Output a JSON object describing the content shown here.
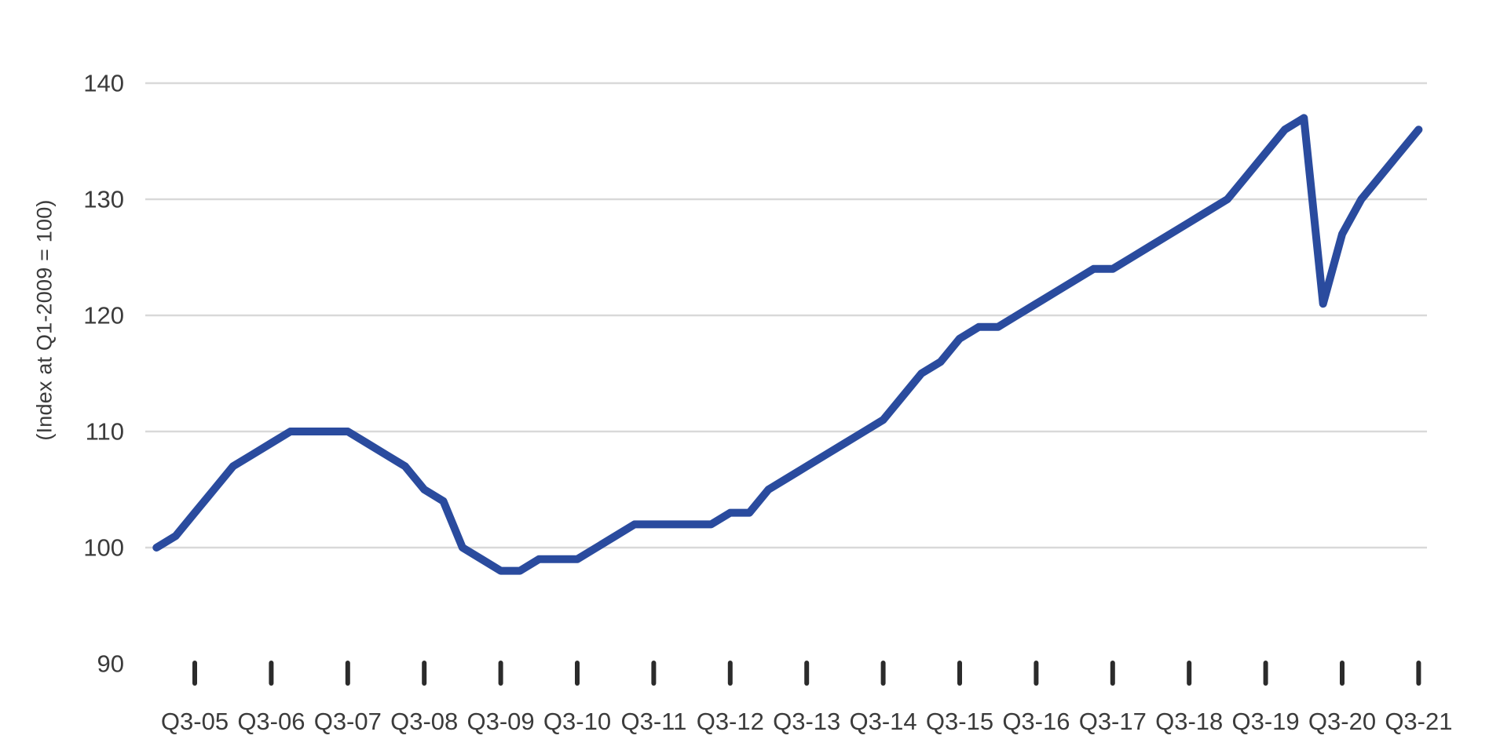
{
  "chart_data": {
    "type": "line",
    "title": "",
    "xlabel": "",
    "ylabel": "(Index at Q1-2009 = 100)",
    "ylim": [
      90,
      140
    ],
    "y_ticks": [
      90,
      100,
      110,
      120,
      130,
      140
    ],
    "gridline_values": [
      100,
      110,
      120,
      130,
      140
    ],
    "grid": "horizontal-only",
    "legend_position": "none",
    "x_tick_labels": [
      "Q3-05",
      "Q3-06",
      "Q3-07",
      "Q3-08",
      "Q3-09",
      "Q3-10",
      "Q3-11",
      "Q3-12",
      "Q3-13",
      "Q3-14",
      "Q3-15",
      "Q3-16",
      "Q3-17",
      "Q3-18",
      "Q3-19",
      "Q3-20",
      "Q3-21"
    ],
    "series": [
      {
        "name": "index",
        "frequency": "quarterly",
        "start_period": "Q1-05",
        "end_period": "Q3-21",
        "quarters": [
          "Q1-05",
          "Q2-05",
          "Q3-05",
          "Q4-05",
          "Q1-06",
          "Q2-06",
          "Q3-06",
          "Q4-06",
          "Q1-07",
          "Q2-07",
          "Q3-07",
          "Q4-07",
          "Q1-08",
          "Q2-08",
          "Q3-08",
          "Q4-08",
          "Q1-09",
          "Q2-09",
          "Q3-09",
          "Q4-09",
          "Q1-10",
          "Q2-10",
          "Q3-10",
          "Q4-10",
          "Q1-11",
          "Q2-11",
          "Q3-11",
          "Q4-11",
          "Q1-12",
          "Q2-12",
          "Q3-12",
          "Q4-12",
          "Q1-13",
          "Q2-13",
          "Q3-13",
          "Q4-13",
          "Q1-14",
          "Q2-14",
          "Q3-14",
          "Q4-14",
          "Q1-15",
          "Q2-15",
          "Q3-15",
          "Q4-15",
          "Q1-16",
          "Q2-16",
          "Q3-16",
          "Q4-16",
          "Q1-17",
          "Q2-17",
          "Q3-17",
          "Q4-17",
          "Q1-18",
          "Q2-18",
          "Q3-18",
          "Q4-18",
          "Q1-19",
          "Q2-19",
          "Q3-19",
          "Q4-19",
          "Q1-20",
          "Q2-20",
          "Q3-20",
          "Q4-20",
          "Q1-21",
          "Q2-21",
          "Q3-21"
        ],
        "values": [
          100,
          101,
          103,
          105,
          107,
          108,
          109,
          110,
          110,
          110,
          110,
          109,
          108,
          107,
          105,
          104,
          100,
          99,
          98,
          98,
          99,
          99,
          99,
          100,
          101,
          102,
          102,
          102,
          102,
          102,
          103,
          103,
          105,
          106,
          107,
          108,
          109,
          110,
          111,
          113,
          115,
          116,
          118,
          119,
          119,
          120,
          121,
          122,
          123,
          124,
          124,
          125,
          126,
          127,
          128,
          129,
          130,
          132,
          134,
          136,
          137,
          121,
          127,
          130,
          132,
          134,
          136
        ]
      }
    ],
    "colors": {
      "line": "#2a4b9e",
      "gridline": "#d9d9d9",
      "axis_text": "#3b3b3b",
      "tick_mark": "#2b2b2b",
      "background": "#ffffff"
    }
  }
}
